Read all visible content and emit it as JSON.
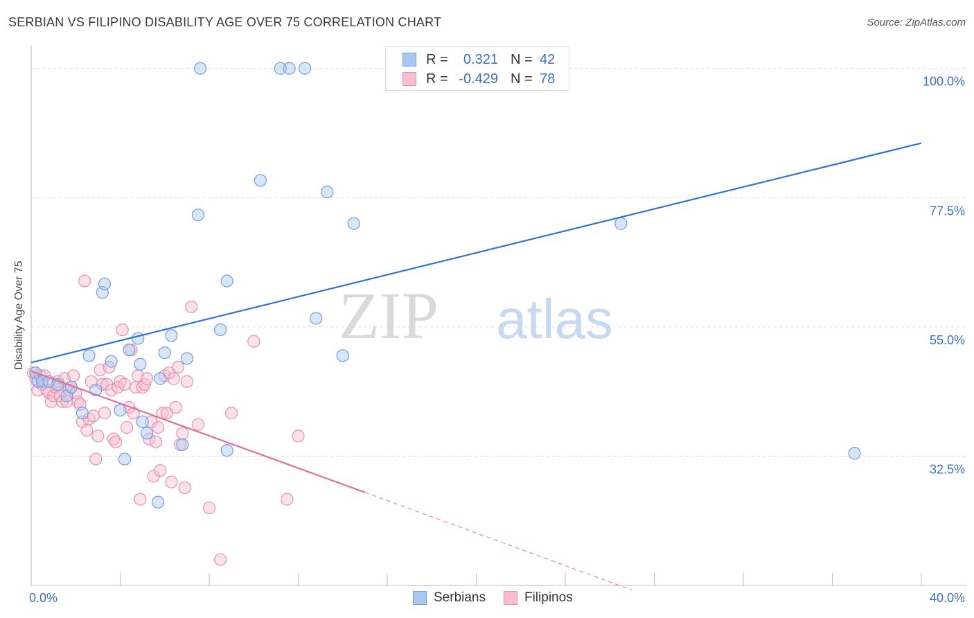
{
  "header": {
    "title": "SERBIAN VS FILIPINO DISABILITY AGE OVER 75 CORRELATION CHART",
    "source": "Source: ZipAtlas.com"
  },
  "watermark": {
    "part1": "ZIP",
    "part2": "atlas"
  },
  "legend": {
    "rows": [
      {
        "r_label": "R =",
        "r_value": "0.321",
        "n_label": "N =",
        "n_value": "42",
        "color": "#a9c8f0",
        "border": "#6f9fe0"
      },
      {
        "r_label": "R =",
        "r_value": "-0.429",
        "n_label": "N =",
        "n_value": "78",
        "color": "#f7bed0",
        "border": "#ea8fae"
      }
    ]
  },
  "bottom_legend": [
    {
      "label": "Serbians",
      "color": "#a9c8f0",
      "border": "#6f9fe0"
    },
    {
      "label": "Filipinos",
      "color": "#f7bed0",
      "border": "#ea8fae"
    }
  ],
  "colors": {
    "serbian_fill": "rgba(169,200,240,0.45)",
    "serbian_stroke": "#6f9fe0",
    "serbian_line": "#2f74d0",
    "filipino_fill": "rgba(247,190,208,0.45)",
    "filipino_stroke": "#ea8fae",
    "filipino_line": "#e0709a",
    "tick_label": "#3a6fc4"
  },
  "chart_data": {
    "type": "scatter",
    "title": "SERBIAN VS FILIPINO DISABILITY AGE OVER 75 CORRELATION CHART",
    "xlabel": "",
    "ylabel": "Disability Age Over 75",
    "xlim": [
      0,
      40
    ],
    "ylim": [
      10,
      102.5
    ],
    "x_tick_labels": [
      "0.0%",
      "40.0%"
    ],
    "y_ticks": [
      32.5,
      55.0,
      77.5,
      100.0
    ],
    "y_tick_labels": [
      "32.5%",
      "55.0%",
      "77.5%",
      "100.0%"
    ],
    "grid": "horizontal dashed",
    "legend_position": "top-center",
    "series": [
      {
        "name": "Serbians",
        "x": [
          0.2,
          0.3,
          0.5,
          0.8,
          1.2,
          1.6,
          1.8,
          2.3,
          2.6,
          2.9,
          3.2,
          3.3,
          3.6,
          4.0,
          4.2,
          4.4,
          4.8,
          4.9,
          5.0,
          5.2,
          5.7,
          5.8,
          6.0,
          6.3,
          6.8,
          7.0,
          7.5,
          7.6,
          8.5,
          8.8,
          8.8,
          10.3,
          11.2,
          11.6,
          12.3,
          12.8,
          13.3,
          14.0,
          14.5,
          16.3,
          26.5,
          37.0
        ],
        "y": [
          47.0,
          45.5,
          45.5,
          45.5,
          45.0,
          43.0,
          44.5,
          40.0,
          50.0,
          44.0,
          61.0,
          62.5,
          49.0,
          40.5,
          32.0,
          51.0,
          53.0,
          48.5,
          38.5,
          36.5,
          24.5,
          46.0,
          50.5,
          53.5,
          34.5,
          49.5,
          74.5,
          100.0,
          54.5,
          33.5,
          63.0,
          80.5,
          100.0,
          100.0,
          100.0,
          56.5,
          78.5,
          50.0,
          73.0,
          100.0,
          73.0,
          33.0
        ]
      },
      {
        "name": "Filipinos",
        "x": [
          0.1,
          0.2,
          0.3,
          0.4,
          0.5,
          0.6,
          0.7,
          0.8,
          0.9,
          1.0,
          1.1,
          1.2,
          1.3,
          1.4,
          1.5,
          1.6,
          1.7,
          1.8,
          1.9,
          2.0,
          2.1,
          2.2,
          2.3,
          2.4,
          2.5,
          2.6,
          2.7,
          2.8,
          2.9,
          3.0,
          3.1,
          3.2,
          3.3,
          3.4,
          3.5,
          3.6,
          3.7,
          3.8,
          3.9,
          4.0,
          4.1,
          4.2,
          4.3,
          4.4,
          4.5,
          4.6,
          4.7,
          4.8,
          4.9,
          5.0,
          5.1,
          5.2,
          5.3,
          5.4,
          5.5,
          5.6,
          5.7,
          5.8,
          5.9,
          6.0,
          6.1,
          6.2,
          6.3,
          6.4,
          6.5,
          6.6,
          6.7,
          6.8,
          6.9,
          7.0,
          7.2,
          7.5,
          8.0,
          8.5,
          9.0,
          10.0,
          11.5,
          12.0
        ],
        "y": [
          47.0,
          46.0,
          44.0,
          46.5,
          45.0,
          46.5,
          44.0,
          43.5,
          42.0,
          43.0,
          44.5,
          45.5,
          43.0,
          42.0,
          46.0,
          42.0,
          44.0,
          44.5,
          46.5,
          43.5,
          42.0,
          41.5,
          38.5,
          63.0,
          37.0,
          39.0,
          45.5,
          39.5,
          32.0,
          36.0,
          47.5,
          45.0,
          40.0,
          45.0,
          48.0,
          44.0,
          35.5,
          35.0,
          44.5,
          45.5,
          54.5,
          45.0,
          37.5,
          41.0,
          51.0,
          40.0,
          44.5,
          46.5,
          25.0,
          44.5,
          45.0,
          46.0,
          35.5,
          38.5,
          29.0,
          35.0,
          37.5,
          30.0,
          40.0,
          46.5,
          40.0,
          47.0,
          28.0,
          46.0,
          41.0,
          48.0,
          34.5,
          36.5,
          27.0,
          45.5,
          58.5,
          38.0,
          23.5,
          14.5,
          40.0,
          52.5,
          25.0,
          36.0
        ]
      }
    ],
    "trend_lines": [
      {
        "series": "Serbians",
        "x": [
          0,
          40
        ],
        "y": [
          48.8,
          87.0
        ],
        "style": "solid"
      },
      {
        "series": "Filipinos",
        "x": [
          0,
          15
        ],
        "y": [
          47.3,
          26.2
        ],
        "style": "solid"
      },
      {
        "series": "Filipinos",
        "x": [
          15,
          27
        ],
        "y": [
          26.2,
          9.2
        ],
        "style": "dashed"
      }
    ]
  }
}
